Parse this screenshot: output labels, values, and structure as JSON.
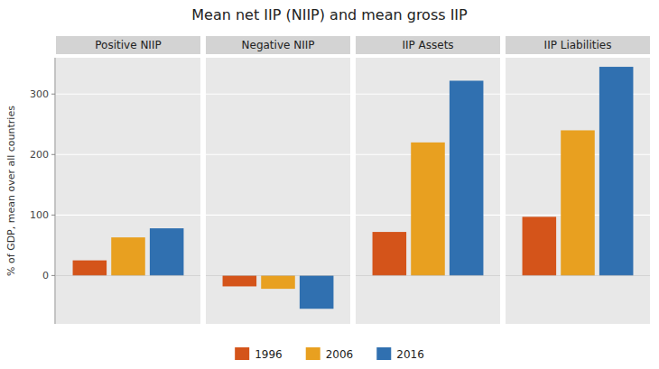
{
  "chart_data": {
    "type": "bar",
    "title": "Mean net IIP (NIIP) and mean gross IIP",
    "y_label": "% of GDP, mean over all countries",
    "categories": [
      "Positive NIIP",
      "Negative NIIP",
      "IIP Assets",
      "IIP Liabilities"
    ],
    "series": [
      {
        "name": "1996",
        "color": "#d4541a",
        "values": [
          25,
          -18,
          72,
          97
        ]
      },
      {
        "name": "2006",
        "color": "#e8a020",
        "values": [
          63,
          -22,
          220,
          240
        ]
      },
      {
        "name": "2016",
        "color": "#3070b0",
        "values": [
          78,
          -55,
          322,
          345
        ]
      }
    ],
    "ylim": [
      -80,
      360
    ],
    "yticks": [
      0,
      100,
      200,
      300
    ],
    "grid": true,
    "legend": "bottom"
  }
}
